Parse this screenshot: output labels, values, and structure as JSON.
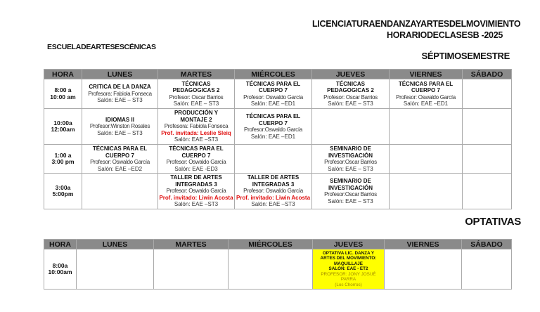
{
  "header": {
    "program": "LICENCIATURAENDANZAYARTESDELMOVIMIENTO",
    "schedule": "HORARIODECLASESB -2025",
    "school": "ESCUELADEARTESESCÉNICAS",
    "semester": "SÉPTIMOSEMESTRE",
    "electives_title": "OPTATIVAS"
  },
  "days": [
    "HORA",
    "LUNES",
    "MARTES",
    "MIÉRCOLES",
    "JUEVES",
    "VIERNES",
    "SÁBADO"
  ],
  "schedule": [
    {
      "time": [
        "8:00 a",
        "10:00 am"
      ],
      "cells": [
        {
          "title": [
            "CRITICA DE LA DANZA"
          ],
          "prof": "Profesora: Fabiola Fonseca",
          "room": "Salón: EAE – ST3"
        },
        {
          "title": [
            "TÉCNICAS",
            "PEDAGOGICAS 2"
          ],
          "prof": "Profesor: Oscar Barrios",
          "room": "Salón: EAE – ST3"
        },
        {
          "title": [
            "TÉCNICAS PARA EL",
            "CUERPO 7"
          ],
          "prof": "Profesor: Oswaldo García",
          "room": "Salón: EAE –ED1"
        },
        {
          "title": [
            "TÉCNICAS",
            "PEDAGOGICAS 2"
          ],
          "prof": "Profesor: Oscar Barrios",
          "room": "Salón: EAE – ST3"
        },
        {
          "title": [
            "TÉCNICAS PARA EL",
            "CUERPO 7"
          ],
          "prof": "Profesor: Oswaldo García",
          "room": "Salón: EAE –ED1"
        },
        null
      ]
    },
    {
      "time": [
        "10:00a",
        "12:00am"
      ],
      "cells": [
        {
          "title": [
            "IDIOMAS II"
          ],
          "prof": "Profesor:Winston Rosales",
          "room": "Salón: EAE – ST3"
        },
        {
          "title": [
            "PRODUCCIÓN Y",
            "MONTAJE 2"
          ],
          "prof": "Profesora: Fabiola Fonseca",
          "guest": "Prof. invitada: Leslie Sleiq",
          "room": "Salón: EAE –ST3"
        },
        {
          "title": [
            "TÉCNICAS PARA EL",
            "CUERPO 7"
          ],
          "prof": "Profesor:Oswaldo García",
          "room": "Salón: EAE –ED1"
        },
        null,
        null,
        null
      ]
    },
    {
      "time": [
        "1:00 a",
        "3:00 pm"
      ],
      "cells": [
        {
          "title": [
            "TÉCNICAS PARA EL",
            "CUERPO 7"
          ],
          "prof": "Profesor: Oswaldo García",
          "room": "Salón: EAE –ED2"
        },
        {
          "title": [
            "TÉCNICAS PARA EL",
            "CUERPO 7"
          ],
          "prof": "Profesor: Oswaldo García",
          "room": "Salón: EAE -ED3"
        },
        null,
        {
          "title": [
            "SEMINARIO DE",
            "INVESTIGACIÓN"
          ],
          "prof": "Profesor:Oscar Barrios",
          "room": "Salón: EAE – ST3"
        },
        null,
        null
      ]
    },
    {
      "time": [
        "3:00a",
        "5:00pm"
      ],
      "cells": [
        null,
        {
          "title": [
            "TALLER DE ARTES",
            "INTEGRADAS 3"
          ],
          "prof": "Profesor: Oswaldo García",
          "guest": "Prof. invitado: Liwin Acosta",
          "room": "Salón: EAE –ST3"
        },
        {
          "title": [
            "TALLER DE ARTES",
            "INTEGRADAS 3"
          ],
          "prof": "Profesor: Oswaldo García",
          "guest": "Prof. invitado: Liwin Acosta",
          "room": "Salón: EAE –ST3"
        },
        {
          "title": [
            "SEMINARIO DE",
            "INVESTIGACIÓN"
          ],
          "prof": "Profesor:Oscar Barrios",
          "room": "Salón: EAE – ST3"
        },
        null,
        null
      ]
    }
  ],
  "electives": {
    "time": [
      "8:00a",
      "10:00am"
    ],
    "thursday": [
      "OPTATIVA LIC. DANZA Y",
      "ARTES DEL MOVIMIENTO:",
      "MAQUILLAJE",
      "SALÓN: EAE - ET2",
      "PROFESOR: JONY JOSUÉ",
      "PARRA",
      "(Los Chorros)"
    ],
    "highlight_color": "#ffff00"
  }
}
